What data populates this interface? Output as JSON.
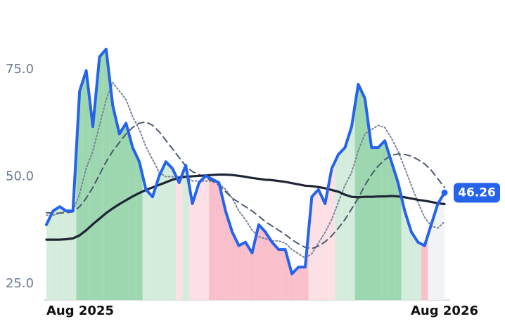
{
  "chart_data": {
    "type": "line",
    "categories": [
      "Aug 2025",
      null,
      null,
      null,
      null,
      null,
      null,
      null,
      null,
      null,
      null,
      null,
      null,
      null,
      null,
      null,
      null,
      null,
      null,
      null,
      null,
      null,
      null,
      null,
      null,
      null,
      null,
      null,
      null,
      null,
      null,
      null,
      null,
      null,
      null,
      null,
      null,
      null,
      null,
      null,
      null,
      null,
      null,
      null,
      null,
      null,
      null,
      null,
      null,
      null,
      null,
      null,
      null,
      null,
      null,
      null,
      null,
      null,
      null,
      null,
      "Aug 2026"
    ],
    "series": [
      {
        "color": "#2563eb",
        "values": [
          38.8,
          42,
          43,
          42,
          42,
          70,
          74.8,
          61.7,
          78,
          79.8,
          66.6,
          60,
          62.5,
          56.8,
          53.5,
          47,
          45.3,
          50.2,
          53.5,
          51.9,
          48.6,
          52.7,
          43.7,
          48.6,
          50.2,
          49.4,
          48.6,
          42,
          37.1,
          33.9,
          34.7,
          32.2,
          38.8,
          37.1,
          34.7,
          33,
          33,
          27.3,
          28.9,
          28.9,
          45.3,
          47,
          43.7,
          51.9,
          55.2,
          56.8,
          61.7,
          71.6,
          68.3,
          56.8,
          56.8,
          58.4,
          53.5,
          48.6,
          42,
          37.1,
          34.7,
          33.9,
          38.8,
          43.7,
          46.26
        ],
        "value_labels": [
          null,
          null,
          null,
          null,
          null,
          null,
          null,
          null,
          null,
          null,
          null,
          null,
          null,
          null,
          null,
          null,
          null,
          null,
          null,
          null,
          null,
          null,
          null,
          null,
          null,
          null,
          null,
          null,
          null,
          null,
          null,
          null,
          null,
          null,
          null,
          null,
          null,
          null,
          null,
          null,
          null,
          null,
          null,
          null,
          null,
          null,
          null,
          null,
          null,
          null,
          null,
          null,
          null,
          null,
          null,
          null,
          null,
          null,
          null,
          null,
          "46.26"
        ],
        "area_colors": [
          "#d4ecdc",
          "#d4ecdc",
          "#d4ecdc",
          "#d4ecdc",
          "#d4ecdc",
          "#9dd7b0",
          "#9dd7b0",
          "#9dd7b0",
          "#9dd7b0",
          "#9dd7b0",
          "#9dd7b0",
          "#9dd7b0",
          "#9dd7b0",
          "#9dd7b0",
          "#9dd7b0",
          "#d4ecdc",
          "#d4ecdc",
          "#d4ecdc",
          "#d4ecdc",
          "#d4ecdc",
          "#fde0e5",
          "#d4ecdc",
          "#fde0e5",
          "#fde0e5",
          "#fde0e5",
          "#f9bfca",
          "#f9bfca",
          "#f9bfca",
          "#f9bfca",
          "#f9bfca",
          "#f9bfca",
          "#f9bfca",
          "#f9bfca",
          "#f9bfca",
          "#f9bfca",
          "#f9bfca",
          "#f9bfca",
          "#f9bfca",
          "#f9bfca",
          "#f9bfca",
          "#fde0e5",
          "#fde0e5",
          "#fde0e5",
          "#fde0e5",
          "#d4ecdc",
          "#d4ecdc",
          "#d4ecdc",
          "#9dd7b0",
          "#9dd7b0",
          "#9dd7b0",
          "#9dd7b0",
          "#9dd7b0",
          "#9dd7b0",
          "#9dd7b0",
          "#d4ecdc",
          "#d4ecdc",
          "#d4ecdc",
          "#f9bfca",
          "#f1f3f5",
          "#f1f3f5",
          "#f1f3f5"
        ]
      },
      {
        "color": "#7a8699",
        "dash": "2 3",
        "values": [
          41,
          41,
          41.5,
          42,
          42,
          46,
          52,
          56,
          62,
          68,
          72,
          70,
          68,
          64,
          61,
          57,
          54,
          51,
          50,
          50,
          50,
          50,
          49,
          49,
          49,
          49,
          48.5,
          47,
          45,
          42,
          40,
          37.5,
          36,
          35.5,
          35,
          35,
          34.5,
          33,
          32,
          31,
          32,
          34.5,
          37,
          40,
          44,
          48,
          51,
          56,
          60,
          61,
          62,
          61.5,
          59,
          56,
          52,
          48,
          44,
          40.5,
          38.5,
          38,
          39.5
        ]
      },
      {
        "color": "#4b5a70",
        "dash": "9 6",
        "values": [
          41.6,
          41.5,
          41.5,
          41.6,
          41.8,
          43,
          45,
          47.5,
          50.5,
          53.5,
          56,
          58,
          60,
          61.5,
          62.5,
          62.8,
          62,
          60.5,
          58.5,
          56.5,
          54.5,
          52.5,
          51.2,
          50.5,
          49.8,
          49,
          48,
          46.5,
          45,
          44,
          43,
          42,
          40.8,
          39.5,
          38.5,
          37.5,
          36.5,
          35.3,
          34.3,
          33.5,
          33.2,
          33.8,
          34.8,
          36.2,
          38,
          40,
          42.5,
          45,
          48,
          50.5,
          52.5,
          54,
          55,
          55.3,
          55.2,
          54.8,
          54,
          53,
          51.5,
          49.5,
          47.5
        ]
      },
      {
        "color": "#1e2433",
        "values": [
          35.3,
          35.3,
          35.3,
          35.4,
          35.6,
          36.3,
          37.5,
          38.9,
          40.2,
          41.5,
          42.6,
          43.6,
          44.5,
          45.4,
          46.2,
          46.9,
          47.5,
          48.1,
          48.7,
          49.3,
          49.8,
          50,
          50.1,
          50.2,
          50.3,
          50.4,
          50.5,
          50.5,
          50.4,
          50.2,
          50,
          49.7,
          49.5,
          49.3,
          49.2,
          49,
          48.8,
          48.5,
          48.2,
          47.9,
          47.8,
          47.6,
          47.3,
          46.9,
          46.5,
          45.8,
          45.3,
          45.2,
          45.3,
          45.3,
          45.4,
          45.4,
          45.5,
          45.4,
          45.2,
          44.9,
          44.6,
          44.4,
          44.1,
          43.8,
          43.6
        ]
      }
    ],
    "ylim": [
      21.2,
      88.0
    ],
    "yticks": [
      {
        "value": 25,
        "label": "25.0"
      },
      {
        "value": 50,
        "label": "50.0"
      },
      {
        "value": 75,
        "label": "75.0"
      }
    ],
    "grid": false
  }
}
